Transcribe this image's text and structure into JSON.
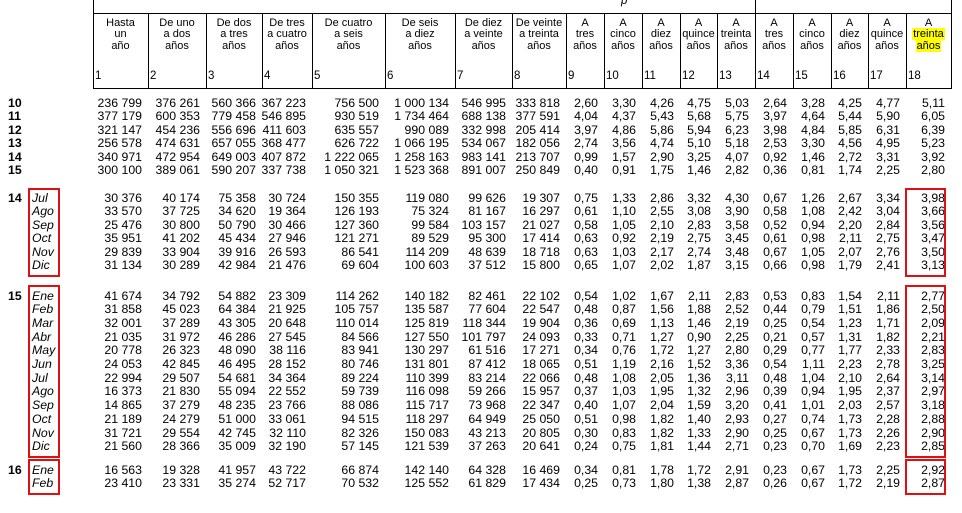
{
  "annotations": {
    "highlight_color": "#ffff00",
    "box_color": "#e01010",
    "header_text_fragment": "p"
  },
  "table": {
    "columns": [
      {
        "number": "1",
        "lines": [
          "Hasta",
          "un",
          "año"
        ]
      },
      {
        "number": "2",
        "lines": [
          "De uno",
          "a dos",
          "años"
        ]
      },
      {
        "number": "3",
        "lines": [
          "De dos",
          "a tres",
          "años"
        ]
      },
      {
        "number": "4",
        "lines": [
          "De tres",
          "a cuatro",
          "años"
        ]
      },
      {
        "number": "5",
        "lines": [
          "De cuatro",
          "a seis",
          "años"
        ]
      },
      {
        "number": "6",
        "lines": [
          "De seis",
          "a diez",
          "años"
        ]
      },
      {
        "number": "7",
        "lines": [
          "De diez",
          "a veinte",
          "años"
        ]
      },
      {
        "number": "8",
        "lines": [
          "De veinte",
          "a treinta",
          "años"
        ]
      },
      {
        "number": "9",
        "lines": [
          "A",
          "tres",
          "años"
        ]
      },
      {
        "number": "10",
        "lines": [
          "A",
          "cinco",
          "años"
        ]
      },
      {
        "number": "11",
        "lines": [
          "A",
          "diez",
          "años"
        ]
      },
      {
        "number": "12",
        "lines": [
          "A",
          "quince",
          "años"
        ]
      },
      {
        "number": "13",
        "lines": [
          "A",
          "treinta",
          "años"
        ]
      },
      {
        "number": "14",
        "lines": [
          "A",
          "tres",
          "años"
        ]
      },
      {
        "number": "15",
        "lines": [
          "A",
          "cinco",
          "años"
        ]
      },
      {
        "number": "16",
        "lines": [
          "A",
          "diez",
          "años"
        ]
      },
      {
        "number": "17",
        "lines": [
          "A",
          "quince",
          "años"
        ]
      },
      {
        "number": "18",
        "lines": [
          "A",
          "treinta",
          "años"
        ],
        "highlighted_lines": [
          1,
          2
        ]
      }
    ],
    "blocks": [
      {
        "months_boxed": false,
        "col18_boxed": false,
        "rows": [
          {
            "year": "10",
            "values": [
              "236 799",
              "376 261",
              "560 366",
              "367 223",
              "756 500",
              "1 000 134",
              "546 995",
              "333 818",
              "2,60",
              "3,30",
              "4,26",
              "4,75",
              "5,03",
              "2,64",
              "3,28",
              "4,25",
              "4,77",
              "5,11"
            ]
          },
          {
            "year": "11",
            "values": [
              "377 179",
              "600 353",
              "779 458",
              "546 895",
              "930 519",
              "1 734 464",
              "688 138",
              "377 591",
              "4,04",
              "4,37",
              "5,43",
              "5,68",
              "5,75",
              "3,97",
              "4,64",
              "5,44",
              "5,90",
              "6,05"
            ]
          },
          {
            "year": "12",
            "values": [
              "321 147",
              "454 236",
              "556 696",
              "411 603",
              "635 557",
              "990 089",
              "332 998",
              "205 414",
              "3,97",
              "4,86",
              "5,86",
              "5,94",
              "6,23",
              "3,98",
              "4,84",
              "5,85",
              "6,31",
              "6,39"
            ]
          },
          {
            "year": "13",
            "values": [
              "256 578",
              "474 631",
              "657 055",
              "368 477",
              "626 722",
              "1 066 195",
              "534 067",
              "182 056",
              "2,74",
              "3,56",
              "4,74",
              "5,10",
              "5,18",
              "2,53",
              "3,30",
              "4,56",
              "4,95",
              "5,23"
            ]
          },
          {
            "year": "14",
            "values": [
              "340 971",
              "472 954",
              "649 003",
              "407 872",
              "1 222 065",
              "1 258 163",
              "983 141",
              "213 707",
              "0,99",
              "1,57",
              "2,90",
              "3,25",
              "4,07",
              "0,92",
              "1,46",
              "2,72",
              "3,31",
              "3,92"
            ]
          },
          {
            "year": "15",
            "values": [
              "300 100",
              "389 061",
              "590 207",
              "337 738",
              "1 050 321",
              "1 523 368",
              "891 007",
              "250 849",
              "0,40",
              "0,91",
              "1,75",
              "1,46",
              "2,82",
              "0,36",
              "0,81",
              "1,74",
              "2,25",
              "2,80"
            ]
          }
        ]
      },
      {
        "months_boxed": true,
        "col18_boxed": true,
        "rows": [
          {
            "year": "14",
            "month": "Jul",
            "values": [
              "30 376",
              "40 174",
              "75 358",
              "30 724",
              "150 355",
              "119 080",
              "99 626",
              "19 307",
              "0,75",
              "1,33",
              "2,86",
              "3,32",
              "4,30",
              "0,67",
              "1,26",
              "2,67",
              "3,34",
              "3,98"
            ]
          },
          {
            "month": "Ago",
            "values": [
              "33 570",
              "37 725",
              "34 620",
              "19 364",
              "126 193",
              "75 324",
              "81 167",
              "16 297",
              "0,61",
              "1,10",
              "2,55",
              "3,08",
              "3,90",
              "0,58",
              "1,08",
              "2,42",
              "3,04",
              "3,66"
            ]
          },
          {
            "month": "Sep",
            "values": [
              "25 476",
              "30 800",
              "50 790",
              "30 466",
              "127 360",
              "99 584",
              "103 157",
              "21 027",
              "0,58",
              "1,05",
              "2,10",
              "2,83",
              "3,58",
              "0,52",
              "0,94",
              "2,20",
              "2,84",
              "3,56"
            ]
          },
          {
            "month": "Oct",
            "values": [
              "35 951",
              "41 202",
              "45 434",
              "27 946",
              "121 271",
              "89 529",
              "95 300",
              "17 414",
              "0,63",
              "0,92",
              "2,19",
              "2,75",
              "3,45",
              "0,61",
              "0,98",
              "2,11",
              "2,75",
              "3,47"
            ]
          },
          {
            "month": "Nov",
            "values": [
              "29 839",
              "33 904",
              "39 916",
              "26 593",
              "86 541",
              "114 209",
              "48 639",
              "18 718",
              "0,63",
              "1,03",
              "2,17",
              "2,74",
              "3,48",
              "0,67",
              "1,05",
              "2,07",
              "2,76",
              "3,50"
            ]
          },
          {
            "month": "Dic",
            "values": [
              "31 134",
              "30 289",
              "42 984",
              "21 476",
              "69 604",
              "100 603",
              "37 512",
              "15 800",
              "0,65",
              "1,07",
              "2,02",
              "1,87",
              "3,15",
              "0,66",
              "0,98",
              "1,79",
              "2,41",
              "3,13"
            ]
          }
        ]
      },
      {
        "months_boxed": true,
        "col18_boxed": true,
        "rows": [
          {
            "year": "15",
            "month": "Ene",
            "values": [
              "41 674",
              "34 792",
              "54 882",
              "23 309",
              "114 262",
              "140 182",
              "82 461",
              "22 102",
              "0,54",
              "1,02",
              "1,67",
              "2,11",
              "2,83",
              "0,53",
              "0,83",
              "1,54",
              "2,11",
              "2,77"
            ]
          },
          {
            "month": "Feb",
            "values": [
              "31 858",
              "45 023",
              "64 384",
              "21 925",
              "105 757",
              "135 587",
              "77 604",
              "22 547",
              "0,48",
              "0,87",
              "1,56",
              "1,88",
              "2,52",
              "0,44",
              "0,79",
              "1,51",
              "1,86",
              "2,50"
            ]
          },
          {
            "month": "Mar",
            "values": [
              "32 001",
              "37 289",
              "43 305",
              "20 648",
              "110 014",
              "125 819",
              "118 344",
              "19 904",
              "0,36",
              "0,69",
              "1,13",
              "1,46",
              "2,19",
              "0,25",
              "0,54",
              "1,23",
              "1,71",
              "2,09"
            ]
          },
          {
            "month": "Abr",
            "values": [
              "21 035",
              "31 972",
              "46 286",
              "27 545",
              "84 566",
              "127 550",
              "101 797",
              "24 093",
              "0,33",
              "0,71",
              "1,27",
              "0,90",
              "2,25",
              "0,21",
              "0,57",
              "1,31",
              "1,82",
              "2,21"
            ]
          },
          {
            "month": "May",
            "values": [
              "20 778",
              "26 323",
              "48 090",
              "38 116",
              "83 941",
              "130 297",
              "61 516",
              "17 271",
              "0,34",
              "0,76",
              "1,72",
              "1,27",
              "2,80",
              "0,29",
              "0,77",
              "1,77",
              "2,33",
              "2,83"
            ]
          },
          {
            "month": "Jun",
            "values": [
              "24 053",
              "42 845",
              "46 495",
              "28 152",
              "80 746",
              "131 801",
              "87 412",
              "18 065",
              "0,51",
              "1,19",
              "2,16",
              "1,52",
              "3,36",
              "0,54",
              "1,11",
              "2,23",
              "2,78",
              "3,25"
            ]
          },
          {
            "month": "Jul",
            "values": [
              "22 994",
              "29 507",
              "54 681",
              "34 364",
              "89 224",
              "110 399",
              "83 214",
              "22 066",
              "0,48",
              "1,08",
              "2,05",
              "1,36",
              "3,11",
              "0,48",
              "1,04",
              "2,10",
              "2,64",
              "3,14"
            ]
          },
          {
            "month": "Ago",
            "values": [
              "16 373",
              "21 830",
              "55 094",
              "22 552",
              "59 739",
              "116 098",
              "59 266",
              "15 957",
              "0,37",
              "1,03",
              "1,95",
              "1,32",
              "2,96",
              "0,39",
              "0,94",
              "1,95",
              "2,37",
              "2,97"
            ]
          },
          {
            "month": "Sep",
            "values": [
              "14 865",
              "37 279",
              "48 235",
              "23 766",
              "88 086",
              "115 717",
              "73 968",
              "22 347",
              "0,40",
              "1,07",
              "2,04",
              "1,59",
              "3,20",
              "0,41",
              "1,01",
              "2,03",
              "2,57",
              "3,18"
            ]
          },
          {
            "month": "Oct",
            "values": [
              "21 189",
              "24 279",
              "51 000",
              "33 061",
              "94 515",
              "118 297",
              "64 949",
              "25 050",
              "0,51",
              "0,98",
              "1,82",
              "1,40",
              "2,93",
              "0,27",
              "0,74",
              "1,73",
              "2,28",
              "2,88"
            ]
          },
          {
            "month": "Nov",
            "values": [
              "31 721",
              "29 554",
              "42 745",
              "32 110",
              "82 326",
              "150 083",
              "43 213",
              "20 805",
              "0,30",
              "0,83",
              "1,82",
              "1,33",
              "2,90",
              "0,25",
              "0,67",
              "1,73",
              "2,26",
              "2,90"
            ]
          },
          {
            "month": "Dic",
            "values": [
              "21 560",
              "28 366",
              "35 009",
              "32 190",
              "57 145",
              "121 539",
              "37 263",
              "20 641",
              "0,24",
              "0,75",
              "1,81",
              "1,44",
              "2,71",
              "0,23",
              "0,70",
              "1,69",
              "2,23",
              "2,85"
            ]
          }
        ]
      },
      {
        "months_boxed": true,
        "col18_boxed": true,
        "rows": [
          {
            "year": "16",
            "month": "Ene",
            "values": [
              "16 563",
              "19 328",
              "41 957",
              "43 722",
              "66 874",
              "142 140",
              "64 328",
              "16 469",
              "0,34",
              "0,81",
              "1,78",
              "1,72",
              "2,91",
              "0,23",
              "0,67",
              "1,73",
              "2,25",
              "2,92"
            ]
          },
          {
            "month": "Feb",
            "values": [
              "23 410",
              "23 331",
              "35 274",
              "52 717",
              "70 532",
              "125 552",
              "61 829",
              "17 434",
              "0,25",
              "0,73",
              "1,80",
              "1,38",
              "2,87",
              "0,26",
              "0,67",
              "1,72",
              "2,19",
              "2,87"
            ]
          }
        ]
      }
    ]
  }
}
